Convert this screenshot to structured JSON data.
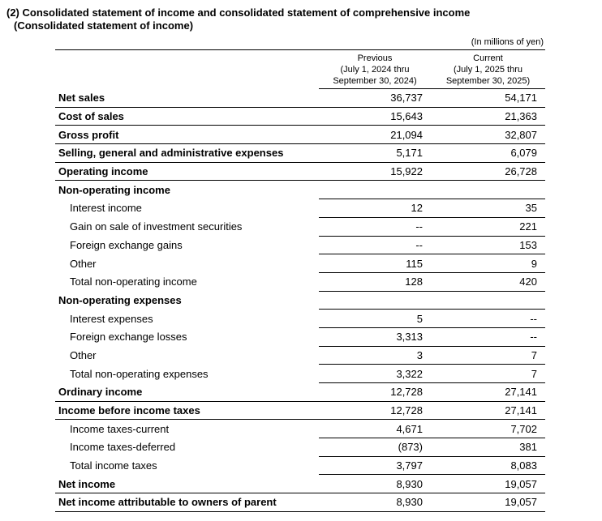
{
  "title_line1": "(2) Consolidated statement of income and consolidated statement of comprehensive income",
  "title_line2": "(Consolidated statement of income)",
  "unit_note": "(In millions of yen)",
  "table": {
    "columns": [
      {
        "name": "Previous",
        "period_line1": "(July 1, 2024 thru",
        "period_line2": "September 30, 2024)"
      },
      {
        "name": "Current",
        "period_line1": "(July 1, 2025 thru",
        "period_line2": "September 30, 2025)"
      }
    ],
    "rows": [
      {
        "label": "Net sales",
        "style": "major",
        "previous": "36,737",
        "current": "54,171"
      },
      {
        "label": "Cost of sales",
        "style": "major",
        "previous": "15,643",
        "current": "21,363"
      },
      {
        "label": "Gross profit",
        "style": "major",
        "previous": "21,094",
        "current": "32,807"
      },
      {
        "label": "Selling, general and administrative expenses",
        "style": "major",
        "previous": "5,171",
        "current": "6,079"
      },
      {
        "label": "Operating income",
        "style": "major",
        "previous": "15,922",
        "current": "26,728"
      },
      {
        "label": "Non-operating income",
        "style": "section",
        "previous": "",
        "current": ""
      },
      {
        "label": "Interest income",
        "style": "minor",
        "previous": "12",
        "current": "35"
      },
      {
        "label": "Gain on sale of investment securities",
        "style": "minor",
        "previous": "--",
        "current": "221"
      },
      {
        "label": "Foreign exchange gains",
        "style": "minor",
        "previous": "--",
        "current": "153"
      },
      {
        "label": "Other",
        "style": "minor",
        "previous": "115",
        "current": "9"
      },
      {
        "label": "Total non-operating income",
        "style": "minor",
        "previous": "128",
        "current": "420"
      },
      {
        "label": "Non-operating expenses",
        "style": "section",
        "previous": "",
        "current": ""
      },
      {
        "label": "Interest expenses",
        "style": "minor",
        "previous": "5",
        "current": "--"
      },
      {
        "label": "Foreign exchange losses",
        "style": "minor",
        "previous": "3,313",
        "current": "--"
      },
      {
        "label": "Other",
        "style": "minor",
        "previous": "3",
        "current": "7"
      },
      {
        "label": "Total non-operating expenses",
        "style": "minor",
        "previous": "3,322",
        "current": "7"
      },
      {
        "label": "Ordinary income",
        "style": "major",
        "previous": "12,728",
        "current": "27,141"
      },
      {
        "label": "Income before income taxes",
        "style": "major",
        "previous": "12,728",
        "current": "27,141"
      },
      {
        "label": "Income taxes-current",
        "style": "minor",
        "previous": "4,671",
        "current": "7,702"
      },
      {
        "label": "Income taxes-deferred",
        "style": "minor",
        "previous": "(873)",
        "current": "381"
      },
      {
        "label": "Total income taxes",
        "style": "minor",
        "previous": "3,797",
        "current": "8,083"
      },
      {
        "label": "Net income",
        "style": "major",
        "previous": "8,930",
        "current": "19,057"
      },
      {
        "label": "Net income attributable to owners of parent",
        "style": "major",
        "previous": "8,930",
        "current": "19,057"
      }
    ]
  }
}
